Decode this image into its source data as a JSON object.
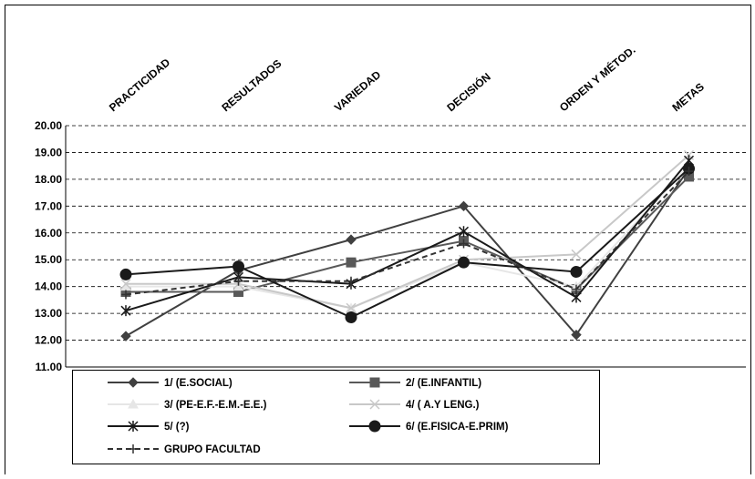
{
  "chart_data": {
    "type": "line",
    "title": "",
    "xlabel": "",
    "ylabel": "",
    "categories": [
      "PRACTICIDAD",
      "RESULTADOS",
      "VARIEDAD",
      "DECISIÓN",
      "ORDEN Y MÉTOD.",
      "METAS"
    ],
    "y_ticks": [
      "11.00",
      "12.00",
      "13.00",
      "14.00",
      "15.00",
      "16.00",
      "17.00",
      "18.00",
      "19.00",
      "20.00"
    ],
    "ylim": [
      11,
      20
    ],
    "grid": "horizontal-dashed",
    "legend_position": "bottom",
    "series": [
      {
        "name": "1/ (E.SOCIAL)",
        "values": [
          12.15,
          14.6,
          15.75,
          17.0,
          12.2,
          18.4
        ],
        "color": "#404040",
        "marker": "diamond",
        "dashed": false
      },
      {
        "name": "2/ (E.INFANTIL)",
        "values": [
          13.8,
          13.8,
          14.9,
          15.7,
          13.9,
          18.1
        ],
        "color": "#595959",
        "marker": "square",
        "dashed": false
      },
      {
        "name": "3/ (PE-E.F.-E.M.-E.E.)",
        "values": [
          14.0,
          14.0,
          13.2,
          14.9,
          14.0,
          18.5
        ],
        "color": "#e6e6e6",
        "marker": "triangle",
        "dashed": false
      },
      {
        "name": "4/ ( A.Y LENG.)",
        "values": [
          14.1,
          14.1,
          13.2,
          15.0,
          15.2,
          18.9
        ],
        "color": "#c8c8c8",
        "marker": "x",
        "dashed": false
      },
      {
        "name": "5/ (?)",
        "values": [
          13.1,
          14.35,
          14.1,
          16.05,
          13.6,
          18.7
        ],
        "color": "#1a1a1a",
        "marker": "asterisk",
        "dashed": false
      },
      {
        "name": "6/ (E.FISICA-E.PRIM)",
        "values": [
          14.45,
          14.75,
          12.85,
          14.9,
          14.55,
          18.4
        ],
        "color": "#1a1a1a",
        "marker": "circle",
        "dashed": false
      },
      {
        "name": "GRUPO FACULTAD",
        "values": [
          13.7,
          14.2,
          14.2,
          15.6,
          13.9,
          18.3
        ],
        "color": "#333333",
        "marker": "plus",
        "dashed": true
      }
    ]
  }
}
